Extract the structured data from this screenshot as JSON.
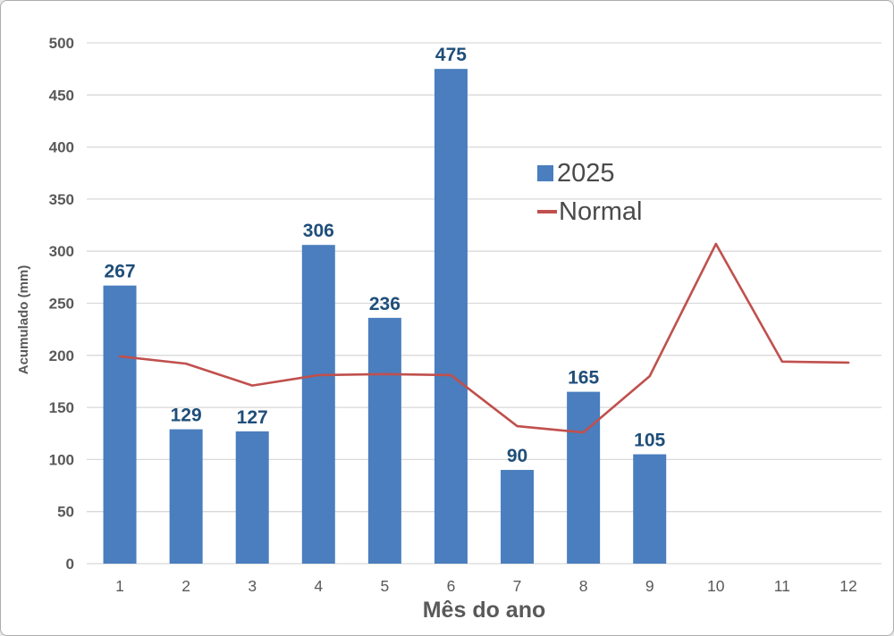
{
  "window": {
    "background": "#FFFFFF",
    "border_color": "#ADADAD"
  },
  "chart_data": {
    "type": "bar",
    "title": "",
    "xlabel": "Mês do ano",
    "ylabel": "Acumulado (mm)",
    "categories": [
      "1",
      "2",
      "3",
      "4",
      "5",
      "6",
      "7",
      "8",
      "9",
      "10",
      "11",
      "12"
    ],
    "series": [
      {
        "name": "2025",
        "type": "bar",
        "color": "#4A7EBE",
        "label_color": "#1F4E79",
        "values": [
          267,
          129,
          127,
          306,
          236,
          475,
          90,
          165,
          105,
          null,
          null,
          null
        ]
      },
      {
        "name": "Normal",
        "type": "line",
        "color": "#C0504D",
        "values": [
          199,
          192,
          171,
          181,
          182,
          181,
          132,
          126,
          180,
          307,
          194,
          193
        ]
      }
    ],
    "ylim": [
      0,
      500
    ],
    "ytick_step": 50,
    "yticks": [
      "0",
      "50",
      "100",
      "150",
      "200",
      "250",
      "300",
      "350",
      "400",
      "450",
      "500"
    ],
    "grid": "horizontal",
    "gridline_color": "#D9D9D9",
    "tick_color": "#595959",
    "legend": {
      "position": "center-right",
      "items": [
        {
          "label": "2025",
          "swatch": "square",
          "color": "#4A7EBE"
        },
        {
          "label": "Normal",
          "swatch": "line",
          "color": "#C0504D"
        }
      ]
    }
  }
}
